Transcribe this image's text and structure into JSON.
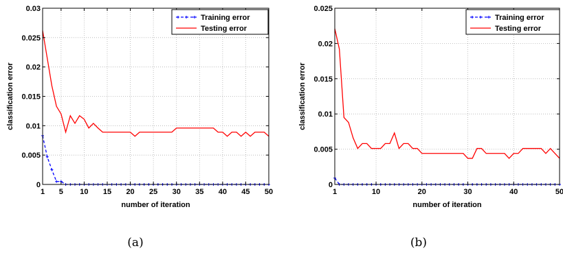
{
  "chart_data": [
    {
      "type": "line",
      "caption": "(a)",
      "xlabel": "number of iteration",
      "ylabel": "classification error",
      "xlim": [
        1,
        50
      ],
      "ylim": [
        0,
        0.03
      ],
      "xticks": [
        1,
        5,
        10,
        15,
        20,
        25,
        30,
        35,
        40,
        45,
        50
      ],
      "yticks": [
        0,
        0.005,
        0.01,
        0.015,
        0.02,
        0.025,
        0.03
      ],
      "ytick_labels": [
        "0",
        "0.005",
        "0.01",
        "0.015",
        "0.02",
        "0.025",
        "0.03"
      ],
      "grid": true,
      "legend_position": "top-right",
      "series": [
        {
          "name": "Training error",
          "color": "#0000ff",
          "style": "dashed-marker",
          "x": [
            1,
            2,
            3,
            4,
            5,
            6,
            7,
            8,
            9,
            10,
            11,
            12,
            13,
            14,
            15,
            16,
            17,
            18,
            19,
            20,
            21,
            22,
            23,
            24,
            25,
            26,
            27,
            28,
            29,
            30,
            31,
            32,
            33,
            34,
            35,
            36,
            37,
            38,
            39,
            40,
            41,
            42,
            43,
            44,
            45,
            46,
            47,
            48,
            49,
            50
          ],
          "y": [
            0.0083,
            0.0047,
            0.0025,
            0.0005,
            0.0005,
            0,
            0,
            0,
            0,
            0,
            0,
            0,
            0,
            0,
            0,
            0,
            0,
            0,
            0,
            0,
            0,
            0,
            0,
            0,
            0,
            0,
            0,
            0,
            0,
            0,
            0,
            0,
            0,
            0,
            0,
            0,
            0,
            0,
            0,
            0,
            0,
            0,
            0,
            0,
            0,
            0,
            0,
            0,
            0,
            0
          ]
        },
        {
          "name": "Testing error",
          "color": "#ff0000",
          "style": "solid",
          "x": [
            1,
            2,
            3,
            4,
            5,
            6,
            7,
            8,
            9,
            10,
            11,
            12,
            13,
            14,
            15,
            16,
            17,
            18,
            19,
            20,
            21,
            22,
            23,
            24,
            25,
            26,
            27,
            28,
            29,
            30,
            31,
            32,
            33,
            34,
            35,
            36,
            37,
            38,
            39,
            40,
            41,
            42,
            43,
            44,
            45,
            46,
            47,
            48,
            49,
            50
          ],
          "y": [
            0.0262,
            0.0215,
            0.0168,
            0.0133,
            0.012,
            0.0089,
            0.0117,
            0.0104,
            0.0117,
            0.0111,
            0.0096,
            0.0104,
            0.0096,
            0.0089,
            0.0089,
            0.0089,
            0.0089,
            0.0089,
            0.0089,
            0.0089,
            0.0082,
            0.0089,
            0.0089,
            0.0089,
            0.0089,
            0.0089,
            0.0089,
            0.0089,
            0.0089,
            0.0096,
            0.0096,
            0.0096,
            0.0096,
            0.0096,
            0.0096,
            0.0096,
            0.0096,
            0.0096,
            0.0089,
            0.0089,
            0.0082,
            0.0089,
            0.0089,
            0.0082,
            0.0089,
            0.0082,
            0.0089,
            0.0089,
            0.0089,
            0.0082
          ]
        }
      ]
    },
    {
      "type": "line",
      "caption": "(b)",
      "xlabel": "number of iteration",
      "ylabel": "classification error",
      "xlim": [
        1,
        50
      ],
      "ylim": [
        0,
        0.025
      ],
      "xticks": [
        1,
        10,
        20,
        30,
        40,
        50
      ],
      "yticks": [
        0,
        0.005,
        0.01,
        0.015,
        0.02,
        0.025
      ],
      "ytick_labels": [
        "0",
        "0.005",
        "0.01",
        "0.015",
        "0.02",
        "0.025"
      ],
      "grid": true,
      "legend_position": "top-right",
      "series": [
        {
          "name": "Training error",
          "color": "#0000ff",
          "style": "dashed-marker",
          "x": [
            1,
            2,
            3,
            4,
            5,
            6,
            7,
            8,
            9,
            10,
            11,
            12,
            13,
            14,
            15,
            16,
            17,
            18,
            19,
            20,
            21,
            22,
            23,
            24,
            25,
            26,
            27,
            28,
            29,
            30,
            31,
            32,
            33,
            34,
            35,
            36,
            37,
            38,
            39,
            40,
            41,
            42,
            43,
            44,
            45,
            46,
            47,
            48,
            49,
            50
          ],
          "y": [
            0.0009,
            0,
            0,
            0,
            0,
            0,
            0,
            0,
            0,
            0,
            0,
            0,
            0,
            0,
            0,
            0,
            0,
            0,
            0,
            0,
            0,
            0,
            0,
            0,
            0,
            0,
            0,
            0,
            0,
            0,
            0,
            0,
            0,
            0,
            0,
            0,
            0,
            0,
            0,
            0,
            0,
            0,
            0,
            0,
            0,
            0,
            0,
            0,
            0,
            0
          ]
        },
        {
          "name": "Testing error",
          "color": "#ff0000",
          "style": "solid",
          "x": [
            1,
            2,
            3,
            4,
            5,
            6,
            7,
            8,
            9,
            10,
            11,
            12,
            13,
            14,
            15,
            16,
            17,
            18,
            19,
            20,
            21,
            22,
            23,
            24,
            25,
            26,
            27,
            28,
            29,
            30,
            31,
            32,
            33,
            34,
            35,
            36,
            37,
            38,
            39,
            40,
            41,
            42,
            43,
            44,
            45,
            46,
            47,
            48,
            49,
            50
          ],
          "y": [
            0.0221,
            0.0192,
            0.0095,
            0.0088,
            0.0066,
            0.0051,
            0.0058,
            0.0058,
            0.0051,
            0.0051,
            0.0051,
            0.0058,
            0.0058,
            0.0073,
            0.0051,
            0.0058,
            0.0058,
            0.0051,
            0.0051,
            0.0044,
            0.0044,
            0.0044,
            0.0044,
            0.0044,
            0.0044,
            0.0044,
            0.0044,
            0.0044,
            0.0044,
            0.0037,
            0.0037,
            0.0051,
            0.0051,
            0.0044,
            0.0044,
            0.0044,
            0.0044,
            0.0044,
            0.0037,
            0.0044,
            0.0044,
            0.0051,
            0.0051,
            0.0051,
            0.0051,
            0.0051,
            0.0044,
            0.0051,
            0.0044,
            0.0037
          ]
        }
      ]
    }
  ]
}
